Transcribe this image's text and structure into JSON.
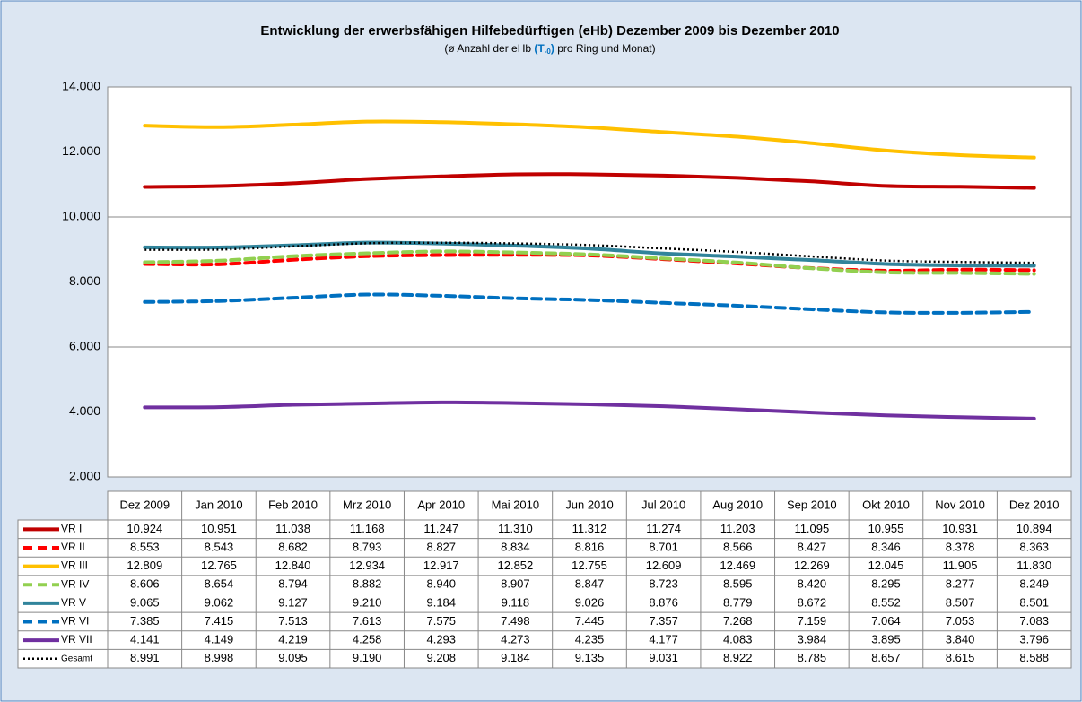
{
  "chart_data": {
    "type": "line",
    "title": "Entwicklung der erwerbsfähigen Hilfebedürftigen (eHb) Dezember 2009 bis Dezember 2010",
    "subtitle": [
      "(ø Anzahl der eHb",
      "(T",
      "-0",
      ")",
      "pro Ring und Monat)"
    ],
    "categories": [
      "Dez 2009",
      "Jan 2010",
      "Feb 2010",
      "Mrz 2010",
      "Apr 2010",
      "Mai 2010",
      "Jun 2010",
      "Jul 2010",
      "Aug 2010",
      "Sep 2010",
      "Okt 2010",
      "Nov 2010",
      "Dez 2010"
    ],
    "ylim": [
      2000,
      14000
    ],
    "yticks": [
      {
        "value": 2000,
        "label": "2.000"
      },
      {
        "value": 4000,
        "label": "4.000"
      },
      {
        "value": 6000,
        "label": "6.000"
      },
      {
        "value": 8000,
        "label": "8.000"
      },
      {
        "value": 10000,
        "label": "10.000"
      },
      {
        "value": 12000,
        "label": "12.000"
      },
      {
        "value": 14000,
        "label": "14.000"
      }
    ],
    "grid": true,
    "series": [
      {
        "name": "VR I",
        "color": "#c00000",
        "dash": "solid",
        "values": [
          10924,
          10951,
          11038,
          11168,
          11247,
          11310,
          11312,
          11274,
          11203,
          11095,
          10955,
          10931,
          10894
        ],
        "value_labels": [
          "10.924",
          "10.951",
          "11.038",
          "11.168",
          "11.247",
          "11.310",
          "11.312",
          "11.274",
          "11.203",
          "11.095",
          "10.955",
          "10.931",
          "10.894"
        ]
      },
      {
        "name": "VR II",
        "color": "#ff0000",
        "dash": "dash",
        "values": [
          8553,
          8543,
          8682,
          8793,
          8827,
          8834,
          8816,
          8701,
          8566,
          8427,
          8346,
          8378,
          8363
        ],
        "value_labels": [
          "8.553",
          "8.543",
          "8.682",
          "8.793",
          "8.827",
          "8.834",
          "8.816",
          "8.701",
          "8.566",
          "8.427",
          "8.346",
          "8.378",
          "8.363"
        ]
      },
      {
        "name": "VR III",
        "color": "#ffc000",
        "dash": "solid",
        "values": [
          12809,
          12765,
          12840,
          12934,
          12917,
          12852,
          12755,
          12609,
          12469,
          12269,
          12045,
          11905,
          11830
        ],
        "value_labels": [
          "12.809",
          "12.765",
          "12.840",
          "12.934",
          "12.917",
          "12.852",
          "12.755",
          "12.609",
          "12.469",
          "12.269",
          "12.045",
          "11.905",
          "11.830"
        ]
      },
      {
        "name": "VR IV",
        "color": "#92d050",
        "dash": "dash",
        "values": [
          8606,
          8654,
          8794,
          8882,
          8940,
          8907,
          8847,
          8723,
          8595,
          8420,
          8295,
          8277,
          8249
        ],
        "value_labels": [
          "8.606",
          "8.654",
          "8.794",
          "8.882",
          "8.940",
          "8.907",
          "8.847",
          "8.723",
          "8.595",
          "8.420",
          "8.295",
          "8.277",
          "8.249"
        ]
      },
      {
        "name": "VR V",
        "color": "#31849b",
        "dash": "solid",
        "values": [
          9065,
          9062,
          9127,
          9210,
          9184,
          9118,
          9026,
          8876,
          8779,
          8672,
          8552,
          8507,
          8501
        ],
        "value_labels": [
          "9.065",
          "9.062",
          "9.127",
          "9.210",
          "9.184",
          "9.118",
          "9.026",
          "8.876",
          "8.779",
          "8.672",
          "8.552",
          "8.507",
          "8.501"
        ]
      },
      {
        "name": "VR VI",
        "color": "#0070c0",
        "dash": "dash",
        "values": [
          7385,
          7415,
          7513,
          7613,
          7575,
          7498,
          7445,
          7357,
          7268,
          7159,
          7064,
          7053,
          7083
        ],
        "value_labels": [
          "7.385",
          "7.415",
          "7.513",
          "7.613",
          "7.575",
          "7.498",
          "7.445",
          "7.357",
          "7.268",
          "7.159",
          "7.064",
          "7.053",
          "7.083"
        ]
      },
      {
        "name": "VR VII",
        "color": "#7030a0",
        "dash": "solid",
        "values": [
          4141,
          4149,
          4219,
          4258,
          4293,
          4273,
          4235,
          4177,
          4083,
          3984,
          3895,
          3840,
          3796
        ],
        "value_labels": [
          "4.141",
          "4.149",
          "4.219",
          "4.258",
          "4.293",
          "4.273",
          "4.235",
          "4.177",
          "4.083",
          "3.984",
          "3.895",
          "3.840",
          "3.796"
        ]
      },
      {
        "name": "Gesamt",
        "color": "#000000",
        "dash": "dot",
        "values": [
          8991,
          8998,
          9095,
          9190,
          9208,
          9184,
          9135,
          9031,
          8922,
          8785,
          8657,
          8615,
          8588
        ],
        "value_labels": [
          "8.991",
          "8.998",
          "9.095",
          "9.190",
          "9.208",
          "9.184",
          "9.135",
          "9.031",
          "8.922",
          "8.785",
          "8.657",
          "8.615",
          "8.588"
        ]
      }
    ]
  }
}
